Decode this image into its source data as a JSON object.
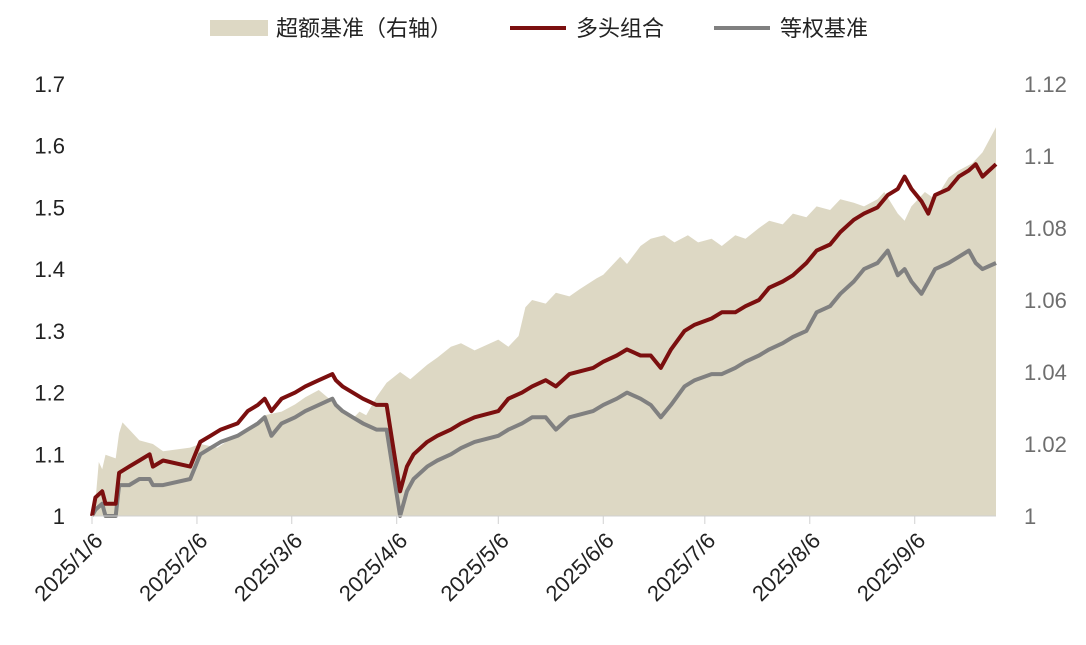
{
  "chart_data": {
    "type": "line",
    "x_axis": {
      "start": "2025-01-06",
      "end": "2025-09-30",
      "ticks": [
        "2025/1/6",
        "2025/2/6",
        "2025/3/6",
        "2025/4/6",
        "2025/5/6",
        "2025/6/6",
        "2025/7/6",
        "2025/8/6",
        "2025/9/6"
      ]
    },
    "y_left": {
      "min": 1,
      "max": 1.7,
      "ticks": [
        "1",
        "1.1",
        "1.2",
        "1.3",
        "1.4",
        "1.5",
        "1.6",
        "1.7"
      ]
    },
    "y_right": {
      "min": 1,
      "max": 1.12,
      "ticks": [
        "1",
        "1.02",
        "1.04",
        "1.06",
        "1.08",
        "1.1",
        "1.12"
      ]
    },
    "grid": false,
    "legend_position": "top",
    "series": [
      {
        "name": "超额基准（右轴）",
        "type": "area",
        "axis": "right",
        "color": "#ddd8c4",
        "points": [
          [
            "2025-01-06",
            1.0
          ],
          [
            "2025-01-07",
            1.004
          ],
          [
            "2025-01-08",
            1.015
          ],
          [
            "2025-01-09",
            1.013
          ],
          [
            "2025-01-10",
            1.017
          ],
          [
            "2025-01-13",
            1.016
          ],
          [
            "2025-01-14",
            1.023
          ],
          [
            "2025-01-15",
            1.026
          ],
          [
            "2025-01-16",
            1.025
          ],
          [
            "2025-01-20",
            1.021
          ],
          [
            "2025-01-24",
            1.02
          ],
          [
            "2025-01-27",
            1.018
          ],
          [
            "2025-02-04",
            1.019
          ],
          [
            "2025-02-07",
            1.02
          ],
          [
            "2025-02-12",
            1.019
          ],
          [
            "2025-02-17",
            1.022
          ],
          [
            "2025-02-21",
            1.024
          ],
          [
            "2025-02-24",
            1.026
          ],
          [
            "2025-02-26",
            1.028
          ],
          [
            "2025-03-03",
            1.029
          ],
          [
            "2025-03-07",
            1.031
          ],
          [
            "2025-03-10",
            1.033
          ],
          [
            "2025-03-14",
            1.035
          ],
          [
            "2025-03-19",
            1.031
          ],
          [
            "2025-03-24",
            1.027
          ],
          [
            "2025-03-26",
            1.029
          ],
          [
            "2025-03-28",
            1.028
          ],
          [
            "2025-03-31",
            1.033
          ],
          [
            "2025-04-03",
            1.037
          ],
          [
            "2025-04-07",
            1.04
          ],
          [
            "2025-04-10",
            1.038
          ],
          [
            "2025-04-15",
            1.042
          ],
          [
            "2025-04-18",
            1.044
          ],
          [
            "2025-04-22",
            1.047
          ],
          [
            "2025-04-25",
            1.048
          ],
          [
            "2025-04-29",
            1.046
          ],
          [
            "2025-05-06",
            1.049
          ],
          [
            "2025-05-09",
            1.047
          ],
          [
            "2025-05-12",
            1.05
          ],
          [
            "2025-05-14",
            1.058
          ],
          [
            "2025-05-16",
            1.06
          ],
          [
            "2025-05-20",
            1.059
          ],
          [
            "2025-05-23",
            1.062
          ],
          [
            "2025-05-27",
            1.061
          ],
          [
            "2025-05-30",
            1.063
          ],
          [
            "2025-06-04",
            1.066
          ],
          [
            "2025-06-06",
            1.067
          ],
          [
            "2025-06-11",
            1.072
          ],
          [
            "2025-06-13",
            1.07
          ],
          [
            "2025-06-17",
            1.075
          ],
          [
            "2025-06-20",
            1.077
          ],
          [
            "2025-06-24",
            1.078
          ],
          [
            "2025-06-27",
            1.076
          ],
          [
            "2025-07-01",
            1.078
          ],
          [
            "2025-07-04",
            1.076
          ],
          [
            "2025-07-08",
            1.077
          ],
          [
            "2025-07-11",
            1.075
          ],
          [
            "2025-07-15",
            1.078
          ],
          [
            "2025-07-18",
            1.077
          ],
          [
            "2025-07-22",
            1.08
          ],
          [
            "2025-07-25",
            1.082
          ],
          [
            "2025-07-29",
            1.081
          ],
          [
            "2025-08-01",
            1.084
          ],
          [
            "2025-08-05",
            1.083
          ],
          [
            "2025-08-08",
            1.086
          ],
          [
            "2025-08-12",
            1.085
          ],
          [
            "2025-08-15",
            1.088
          ],
          [
            "2025-08-19",
            1.087
          ],
          [
            "2025-08-22",
            1.086
          ],
          [
            "2025-08-26",
            1.088
          ],
          [
            "2025-08-28",
            1.09
          ],
          [
            "2025-09-01",
            1.084
          ],
          [
            "2025-09-03",
            1.082
          ],
          [
            "2025-09-05",
            1.086
          ],
          [
            "2025-09-09",
            1.09
          ],
          [
            "2025-09-12",
            1.088
          ],
          [
            "2025-09-16",
            1.094
          ],
          [
            "2025-09-19",
            1.096
          ],
          [
            "2025-09-23",
            1.098
          ],
          [
            "2025-09-26",
            1.101
          ],
          [
            "2025-09-30",
            1.108
          ]
        ]
      },
      {
        "name": "多头组合",
        "type": "line",
        "axis": "left",
        "color": "#7b0f0f",
        "points": [
          [
            "2025-01-06",
            1.0
          ],
          [
            "2025-01-07",
            1.03
          ],
          [
            "2025-01-09",
            1.04
          ],
          [
            "2025-01-10",
            1.02
          ],
          [
            "2025-01-13",
            1.02
          ],
          [
            "2025-01-14",
            1.07
          ],
          [
            "2025-01-17",
            1.08
          ],
          [
            "2025-01-20",
            1.09
          ],
          [
            "2025-01-23",
            1.1
          ],
          [
            "2025-01-24",
            1.08
          ],
          [
            "2025-01-27",
            1.09
          ],
          [
            "2025-02-04",
            1.08
          ],
          [
            "2025-02-07",
            1.12
          ],
          [
            "2025-02-10",
            1.13
          ],
          [
            "2025-02-13",
            1.14
          ],
          [
            "2025-02-18",
            1.15
          ],
          [
            "2025-02-21",
            1.17
          ],
          [
            "2025-02-24",
            1.18
          ],
          [
            "2025-02-26",
            1.19
          ],
          [
            "2025-02-28",
            1.17
          ],
          [
            "2025-03-03",
            1.19
          ],
          [
            "2025-03-07",
            1.2
          ],
          [
            "2025-03-10",
            1.21
          ],
          [
            "2025-03-14",
            1.22
          ],
          [
            "2025-03-18",
            1.23
          ],
          [
            "2025-03-19",
            1.22
          ],
          [
            "2025-03-21",
            1.21
          ],
          [
            "2025-03-24",
            1.2
          ],
          [
            "2025-03-27",
            1.19
          ],
          [
            "2025-03-31",
            1.18
          ],
          [
            "2025-04-03",
            1.18
          ],
          [
            "2025-04-07",
            1.04
          ],
          [
            "2025-04-09",
            1.08
          ],
          [
            "2025-04-11",
            1.1
          ],
          [
            "2025-04-15",
            1.12
          ],
          [
            "2025-04-18",
            1.13
          ],
          [
            "2025-04-22",
            1.14
          ],
          [
            "2025-04-25",
            1.15
          ],
          [
            "2025-04-29",
            1.16
          ],
          [
            "2025-05-06",
            1.17
          ],
          [
            "2025-05-09",
            1.19
          ],
          [
            "2025-05-13",
            1.2
          ],
          [
            "2025-05-16",
            1.21
          ],
          [
            "2025-05-20",
            1.22
          ],
          [
            "2025-05-23",
            1.21
          ],
          [
            "2025-05-27",
            1.23
          ],
          [
            "2025-06-03",
            1.24
          ],
          [
            "2025-06-06",
            1.25
          ],
          [
            "2025-06-10",
            1.26
          ],
          [
            "2025-06-13",
            1.27
          ],
          [
            "2025-06-17",
            1.26
          ],
          [
            "2025-06-20",
            1.26
          ],
          [
            "2025-06-23",
            1.24
          ],
          [
            "2025-06-26",
            1.27
          ],
          [
            "2025-06-30",
            1.3
          ],
          [
            "2025-07-03",
            1.31
          ],
          [
            "2025-07-08",
            1.32
          ],
          [
            "2025-07-11",
            1.33
          ],
          [
            "2025-07-15",
            1.33
          ],
          [
            "2025-07-18",
            1.34
          ],
          [
            "2025-07-22",
            1.35
          ],
          [
            "2025-07-25",
            1.37
          ],
          [
            "2025-07-29",
            1.38
          ],
          [
            "2025-08-01",
            1.39
          ],
          [
            "2025-08-05",
            1.41
          ],
          [
            "2025-08-08",
            1.43
          ],
          [
            "2025-08-12",
            1.44
          ],
          [
            "2025-08-15",
            1.46
          ],
          [
            "2025-08-19",
            1.48
          ],
          [
            "2025-08-22",
            1.49
          ],
          [
            "2025-08-26",
            1.5
          ],
          [
            "2025-08-29",
            1.52
          ],
          [
            "2025-09-01",
            1.53
          ],
          [
            "2025-09-03",
            1.55
          ],
          [
            "2025-09-05",
            1.53
          ],
          [
            "2025-09-08",
            1.51
          ],
          [
            "2025-09-10",
            1.49
          ],
          [
            "2025-09-12",
            1.52
          ],
          [
            "2025-09-16",
            1.53
          ],
          [
            "2025-09-19",
            1.55
          ],
          [
            "2025-09-22",
            1.56
          ],
          [
            "2025-09-24",
            1.57
          ],
          [
            "2025-09-26",
            1.55
          ],
          [
            "2025-09-30",
            1.57
          ]
        ]
      },
      {
        "name": "等权基准",
        "type": "line",
        "axis": "left",
        "color": "#808080",
        "points": [
          [
            "2025-01-06",
            0.98
          ],
          [
            "2025-01-07",
            1.01
          ],
          [
            "2025-01-09",
            1.02
          ],
          [
            "2025-01-10",
            1.0
          ],
          [
            "2025-01-13",
            1.0
          ],
          [
            "2025-01-14",
            1.05
          ],
          [
            "2025-01-17",
            1.05
          ],
          [
            "2025-01-20",
            1.06
          ],
          [
            "2025-01-23",
            1.06
          ],
          [
            "2025-01-24",
            1.05
          ],
          [
            "2025-01-27",
            1.05
          ],
          [
            "2025-02-04",
            1.06
          ],
          [
            "2025-02-07",
            1.1
          ],
          [
            "2025-02-10",
            1.11
          ],
          [
            "2025-02-13",
            1.12
          ],
          [
            "2025-02-18",
            1.13
          ],
          [
            "2025-02-21",
            1.14
          ],
          [
            "2025-02-24",
            1.15
          ],
          [
            "2025-02-26",
            1.16
          ],
          [
            "2025-02-28",
            1.13
          ],
          [
            "2025-03-03",
            1.15
          ],
          [
            "2025-03-07",
            1.16
          ],
          [
            "2025-03-10",
            1.17
          ],
          [
            "2025-03-14",
            1.18
          ],
          [
            "2025-03-18",
            1.19
          ],
          [
            "2025-03-19",
            1.18
          ],
          [
            "2025-03-21",
            1.17
          ],
          [
            "2025-03-24",
            1.16
          ],
          [
            "2025-03-27",
            1.15
          ],
          [
            "2025-03-31",
            1.14
          ],
          [
            "2025-04-03",
            1.14
          ],
          [
            "2025-04-07",
            1.0
          ],
          [
            "2025-04-09",
            1.04
          ],
          [
            "2025-04-11",
            1.06
          ],
          [
            "2025-04-15",
            1.08
          ],
          [
            "2025-04-18",
            1.09
          ],
          [
            "2025-04-22",
            1.1
          ],
          [
            "2025-04-25",
            1.11
          ],
          [
            "2025-04-29",
            1.12
          ],
          [
            "2025-05-06",
            1.13
          ],
          [
            "2025-05-09",
            1.14
          ],
          [
            "2025-05-13",
            1.15
          ],
          [
            "2025-05-16",
            1.16
          ],
          [
            "2025-05-20",
            1.16
          ],
          [
            "2025-05-23",
            1.14
          ],
          [
            "2025-05-27",
            1.16
          ],
          [
            "2025-06-03",
            1.17
          ],
          [
            "2025-06-06",
            1.18
          ],
          [
            "2025-06-10",
            1.19
          ],
          [
            "2025-06-13",
            1.2
          ],
          [
            "2025-06-17",
            1.19
          ],
          [
            "2025-06-20",
            1.18
          ],
          [
            "2025-06-23",
            1.16
          ],
          [
            "2025-06-26",
            1.18
          ],
          [
            "2025-06-30",
            1.21
          ],
          [
            "2025-07-03",
            1.22
          ],
          [
            "2025-07-08",
            1.23
          ],
          [
            "2025-07-11",
            1.23
          ],
          [
            "2025-07-15",
            1.24
          ],
          [
            "2025-07-18",
            1.25
          ],
          [
            "2025-07-22",
            1.26
          ],
          [
            "2025-07-25",
            1.27
          ],
          [
            "2025-07-29",
            1.28
          ],
          [
            "2025-08-01",
            1.29
          ],
          [
            "2025-08-05",
            1.3
          ],
          [
            "2025-08-08",
            1.33
          ],
          [
            "2025-08-12",
            1.34
          ],
          [
            "2025-08-15",
            1.36
          ],
          [
            "2025-08-19",
            1.38
          ],
          [
            "2025-08-22",
            1.4
          ],
          [
            "2025-08-26",
            1.41
          ],
          [
            "2025-08-29",
            1.43
          ],
          [
            "2025-09-01",
            1.39
          ],
          [
            "2025-09-03",
            1.4
          ],
          [
            "2025-09-05",
            1.38
          ],
          [
            "2025-09-08",
            1.36
          ],
          [
            "2025-09-10",
            1.38
          ],
          [
            "2025-09-12",
            1.4
          ],
          [
            "2025-09-16",
            1.41
          ],
          [
            "2025-09-19",
            1.42
          ],
          [
            "2025-09-22",
            1.43
          ],
          [
            "2025-09-24",
            1.41
          ],
          [
            "2025-09-26",
            1.4
          ],
          [
            "2025-09-30",
            1.41
          ]
        ]
      }
    ]
  }
}
